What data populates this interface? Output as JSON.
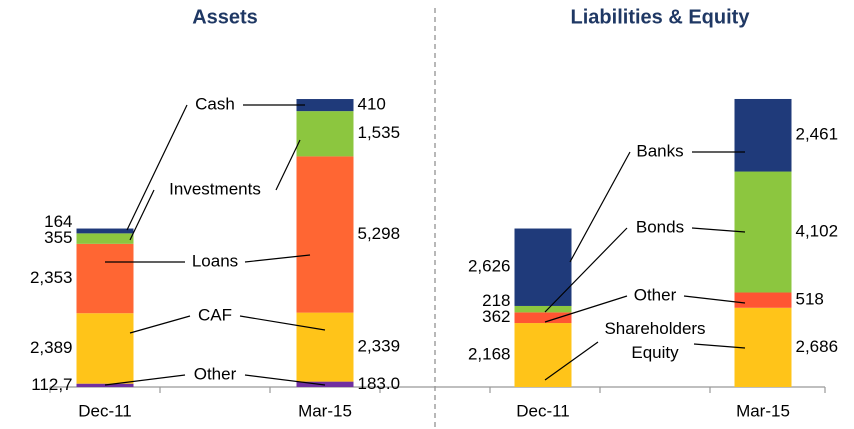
{
  "chart_data": [
    {
      "type": "bar",
      "stacked": true,
      "title": "Assets",
      "categories": [
        "Dec-11",
        "Mar-15"
      ],
      "ylim": [
        0,
        9800
      ],
      "series": [
        {
          "name": "Other",
          "color": "#7030a0",
          "values": [
            112.7,
            183.0
          ],
          "value_labels": [
            "112,7",
            "183.0"
          ]
        },
        {
          "name": "CAF",
          "color": "#ffc419",
          "values": [
            2389,
            2339
          ],
          "value_labels": [
            "2,389",
            "2,339"
          ]
        },
        {
          "name": "Loans",
          "color": "#ff6633",
          "values": [
            2353,
            5298
          ],
          "value_labels": [
            "2,353",
            "5,298"
          ]
        },
        {
          "name": "Investments",
          "color": "#8cc63f",
          "values": [
            355,
            1535
          ],
          "value_labels": [
            "355",
            "1,535"
          ]
        },
        {
          "name": "Cash",
          "color": "#1f3a7a",
          "values": [
            164,
            410
          ],
          "value_labels": [
            "164",
            "410"
          ]
        }
      ]
    },
    {
      "type": "bar",
      "stacked": true,
      "title": "Liabilities & Equity",
      "categories": [
        "Dec-11",
        "Mar-15"
      ],
      "ylim": [
        0,
        9800
      ],
      "series": [
        {
          "name": "Shareholders Equity",
          "color": "#ffc419",
          "values": [
            2168,
            2686
          ],
          "value_labels": [
            "2,168",
            "2,686"
          ]
        },
        {
          "name": "Other",
          "color": "#ff5533",
          "values": [
            362,
            518
          ],
          "value_labels": [
            "362",
            "518"
          ]
        },
        {
          "name": "Bonds",
          "color": "#8cc63f",
          "values": [
            218,
            4102
          ],
          "value_labels": [
            "218",
            "4,102"
          ]
        },
        {
          "name": "Banks",
          "color": "#1f3a7a",
          "values": [
            2626,
            2461
          ],
          "value_labels": [
            "2,626",
            "2,461"
          ]
        }
      ]
    }
  ]
}
